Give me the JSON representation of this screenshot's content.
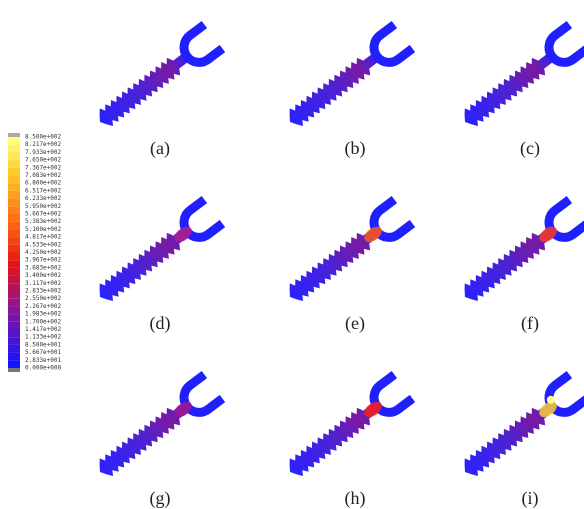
{
  "legend": {
    "labels": [
      "8.500e+002",
      "8.217e+002",
      "7.933e+002",
      "7.650e+002",
      "7.367e+002",
      "7.083e+002",
      "6.800e+002",
      "6.517e+002",
      "6.233e+002",
      "5.950e+002",
      "5.667e+002",
      "5.383e+002",
      "5.100e+002",
      "4.817e+002",
      "4.533e+002",
      "4.250e+002",
      "3.967e+002",
      "3.683e+002",
      "3.400e+002",
      "3.117e+002",
      "2.833e+002",
      "2.550e+002",
      "2.267e+002",
      "1.983e+002",
      "1.700e+002",
      "1.417e+002",
      "1.133e+002",
      "8.500e+001",
      "5.667e+001",
      "2.833e+001",
      "0.000e+000"
    ]
  },
  "panels": [
    {
      "label": "(a)"
    },
    {
      "label": "(b)"
    },
    {
      "label": "(c)"
    },
    {
      "label": "(d)"
    },
    {
      "label": "(e)"
    },
    {
      "label": "(f)"
    },
    {
      "label": "(g)"
    },
    {
      "label": "(h)"
    },
    {
      "label": "(i)"
    }
  ]
}
